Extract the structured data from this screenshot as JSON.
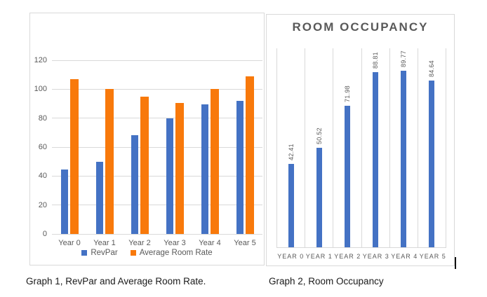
{
  "graph1": {
    "caption": "Graph 1, RevPar and Average Room Rate."
  },
  "graph2": {
    "title": "ROOM OCCUPANCY",
    "caption": "Graph 2, Room Occupancy"
  },
  "colors": {
    "revpar_blue": "#4472C4",
    "room_rate_orange": "#F8790B",
    "gridline_gray": "#D9D9D9",
    "axis_text_gray": "#595959",
    "caption_black": "#1A1A1A"
  },
  "chart_data": [
    {
      "id": "graph1",
      "type": "bar",
      "title": "",
      "categories": [
        "Year 0",
        "Year 1",
        "Year 2",
        "Year 3",
        "Year 4",
        "Year 5"
      ],
      "series": [
        {
          "name": "RevPar",
          "color": "#4472C4",
          "values": [
            44.5,
            50,
            68,
            80,
            89.5,
            92
          ]
        },
        {
          "name": "Average Room Rate",
          "color": "#F8790B",
          "values": [
            107,
            100,
            95,
            90.5,
            100,
            109
          ]
        }
      ],
      "xlabel": "",
      "ylabel": "",
      "ylim": [
        0,
        120
      ],
      "y_ticks": [
        0,
        20,
        40,
        60,
        80,
        100,
        120
      ],
      "gridlines": "horizontal",
      "legend_position": "bottom"
    },
    {
      "id": "graph2",
      "type": "bar",
      "title": "ROOM OCCUPANCY",
      "categories": [
        "YEAR 0",
        "YEAR 1",
        "YEAR 2",
        "YEAR 3",
        "YEAR 4",
        "YEAR 5"
      ],
      "values": [
        42.41,
        50.52,
        71.98,
        88.81,
        89.77,
        84.64
      ],
      "data_labels": [
        "42.41",
        "50.52",
        "71.98",
        "88.81",
        "89.77",
        "84.64"
      ],
      "data_label_rotation": 90,
      "bar_color": "#4472C4",
      "xlabel": "",
      "ylabel": "",
      "ylim": [
        0,
        101
      ],
      "gridlines": "vertical",
      "legend_position": "none"
    }
  ]
}
